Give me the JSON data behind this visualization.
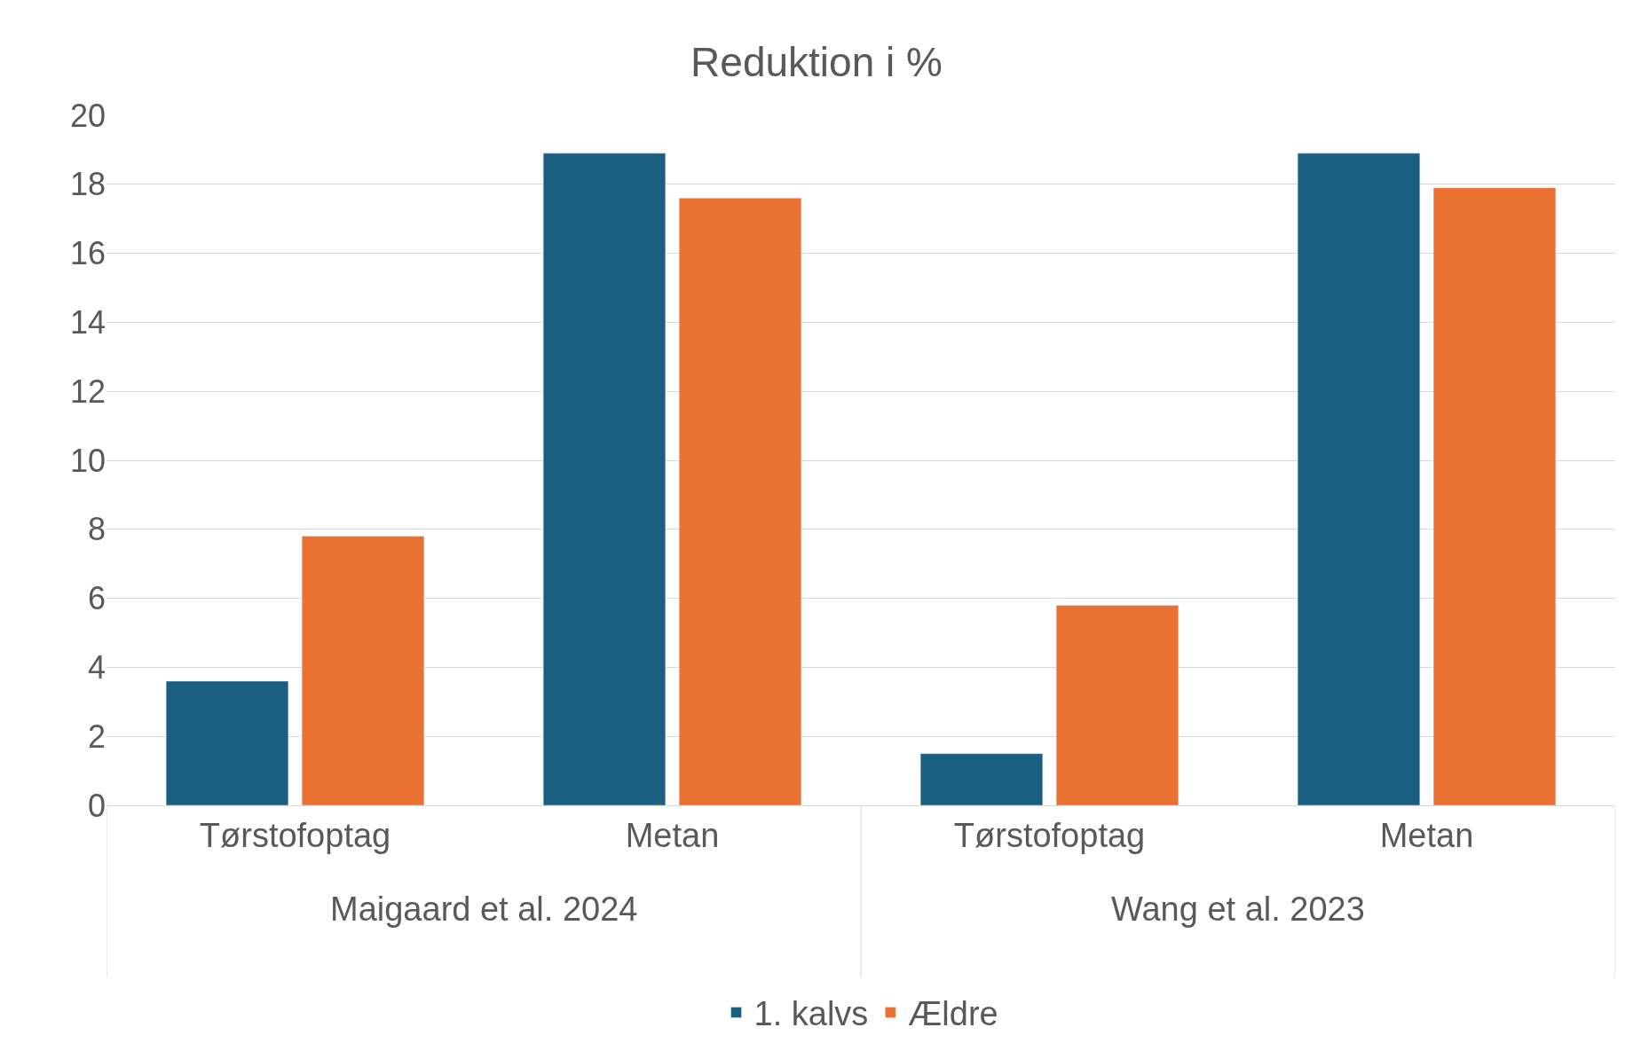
{
  "chart_data": {
    "type": "bar",
    "title": "Reduktion i %",
    "categories": [
      "Tørstofoptag",
      "Metan",
      "Tørstofoptag",
      "Metan"
    ],
    "series": [
      {
        "name": "1. kalvs",
        "color": "#1a5e80",
        "values": [
          3.6,
          18.9,
          1.5,
          18.9
        ]
      },
      {
        "name": "Ældre",
        "color": "#e97132",
        "values": [
          7.8,
          17.6,
          5.8,
          17.9
        ]
      }
    ],
    "annotations": [
      "Maigaard et al. 2024",
      "Wang et al. 2023"
    ],
    "ylim": [
      0,
      20
    ],
    "yticks": [
      0,
      2,
      4,
      6,
      8,
      10,
      12,
      14,
      16,
      18,
      20
    ],
    "grid": "y",
    "legend": "bottom"
  }
}
